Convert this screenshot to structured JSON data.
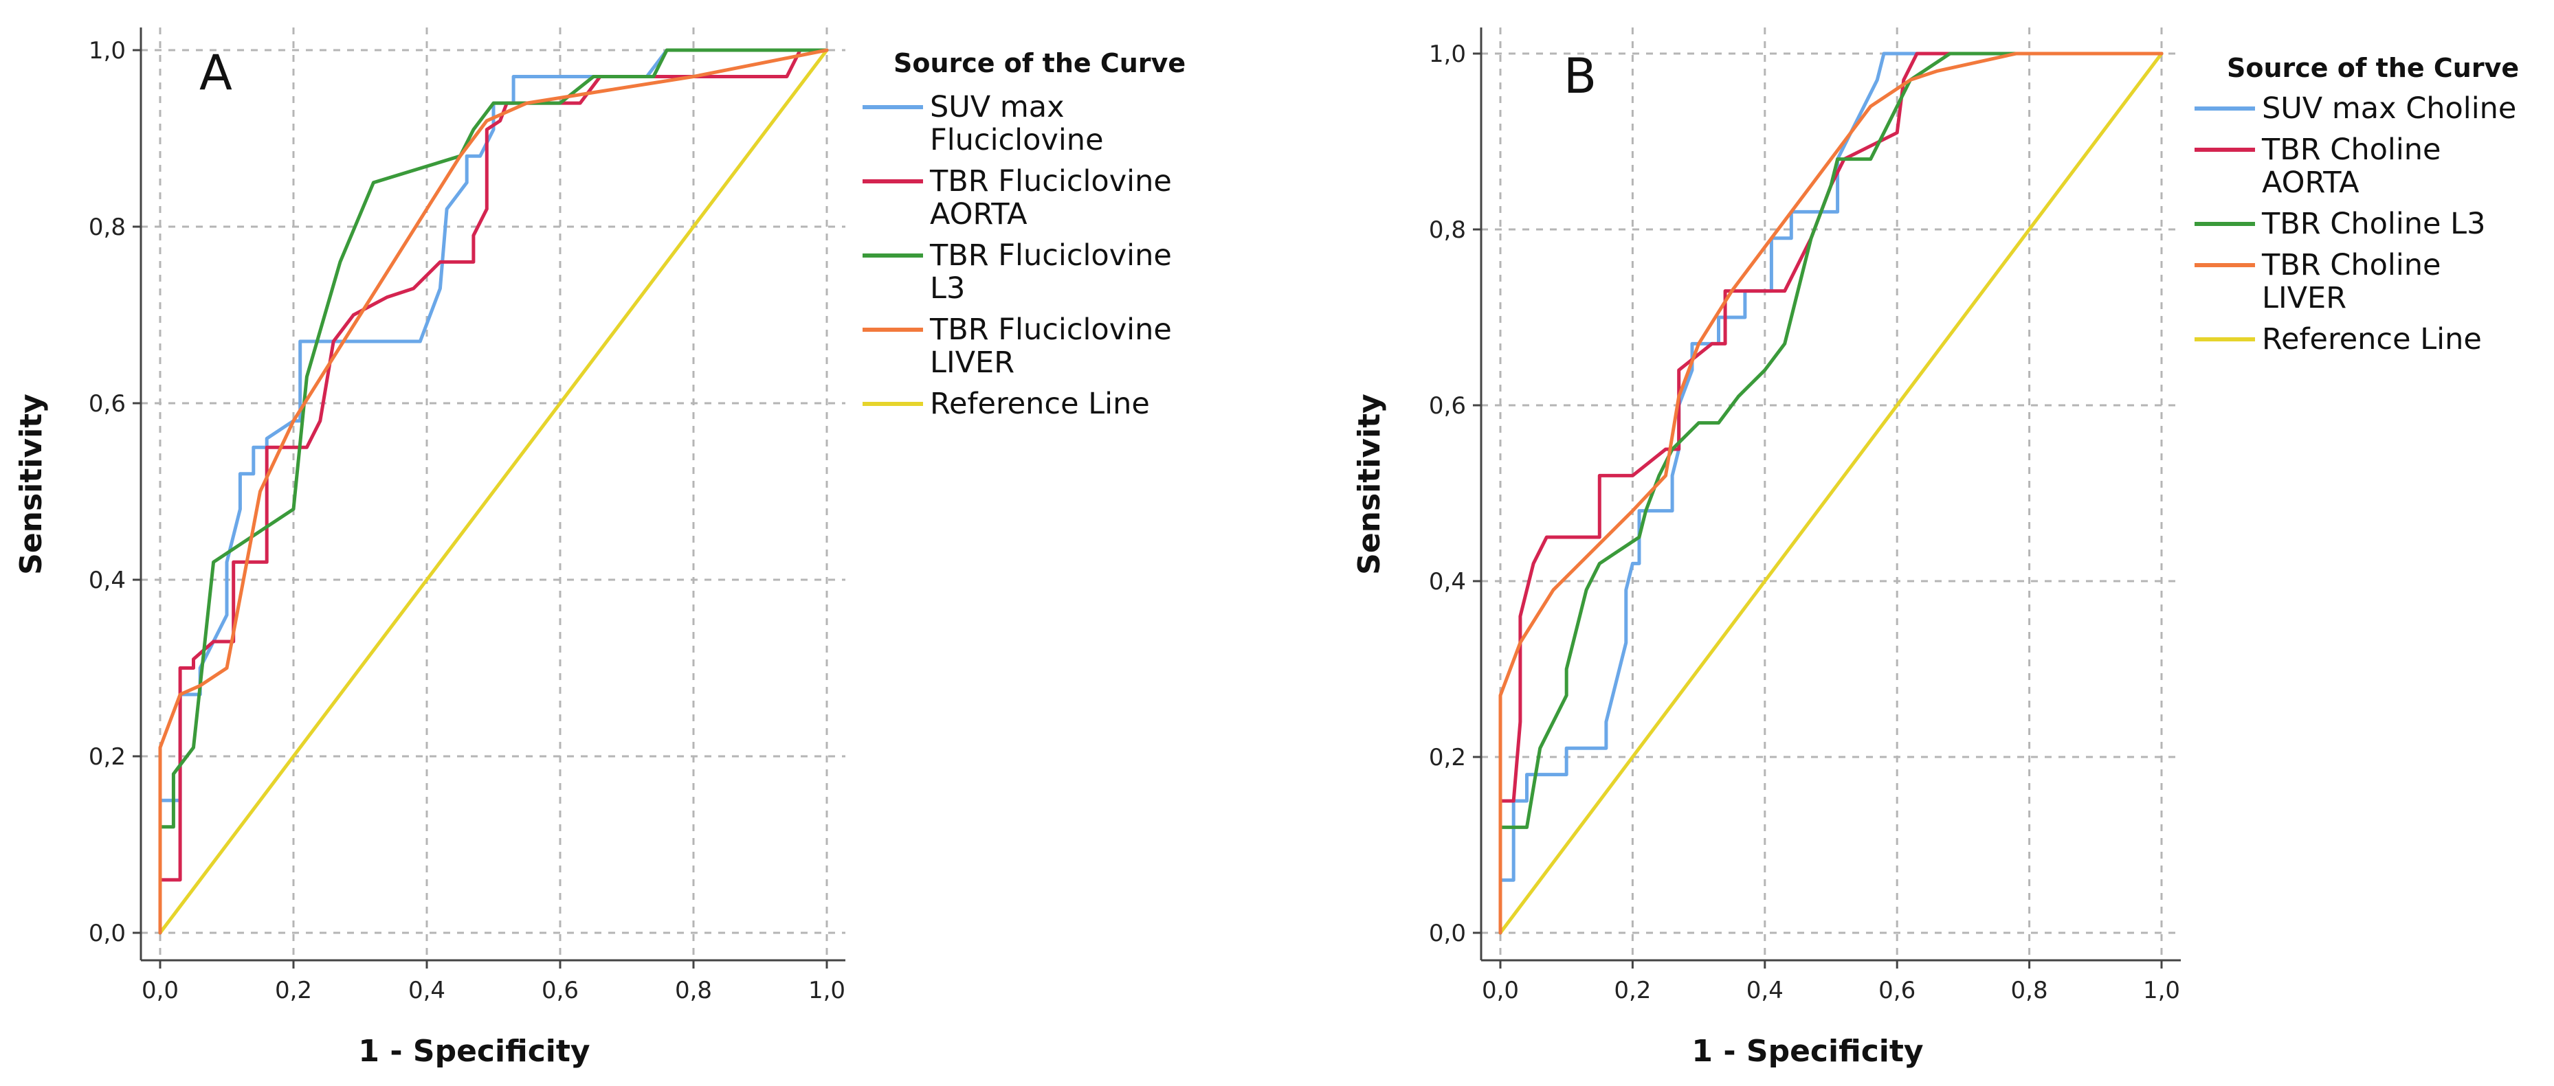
{
  "chart_data": [
    {
      "type": "line",
      "panel_label": "A",
      "title": "",
      "xlabel": "1 - Specificity",
      "ylabel": "Sensitivity",
      "xlim": [
        0,
        1
      ],
      "ylim": [
        0,
        1
      ],
      "xticks": [
        "0,0",
        "0,2",
        "0,4",
        "0,6",
        "0,8",
        "1,0"
      ],
      "yticks": [
        "0,0",
        "0,2",
        "0,4",
        "0,6",
        "0,8",
        "1,0"
      ],
      "grid": true,
      "legend_title": "Source of the Curve",
      "legend_position": "right",
      "series": [
        {
          "name": "SUV max Fluciclovine",
          "legend_lines": [
            "SUV max",
            "Fluciclovine"
          ],
          "color": "#6aa7e8",
          "x": [
            0,
            0,
            0.03,
            0.03,
            0.06,
            0.06,
            0.1,
            0.1,
            0.12,
            0.12,
            0.14,
            0.14,
            0.16,
            0.16,
            0.2,
            0.21,
            0.21,
            0.39,
            0.42,
            0.43,
            0.46,
            0.46,
            0.48,
            0.5,
            0.5,
            0.53,
            0.53,
            0.62,
            0.64,
            0.73,
            0.76,
            1
          ],
          "y": [
            0,
            0.15,
            0.15,
            0.27,
            0.27,
            0.3,
            0.36,
            0.42,
            0.48,
            0.52,
            0.52,
            0.55,
            0.55,
            0.56,
            0.58,
            0.58,
            0.67,
            0.67,
            0.73,
            0.82,
            0.85,
            0.88,
            0.88,
            0.91,
            0.94,
            0.94,
            0.97,
            0.97,
            0.97,
            0.97,
            1,
            1
          ]
        },
        {
          "name": "TBR Fluciclovine AORTA",
          "legend_lines": [
            "TBR Fluciclovine",
            "AORTA"
          ],
          "color": "#d42450",
          "x": [
            0,
            0,
            0.03,
            0.03,
            0.05,
            0.05,
            0.08,
            0.11,
            0.11,
            0.12,
            0.13,
            0.16,
            0.16,
            0.22,
            0.24,
            0.26,
            0.29,
            0.34,
            0.38,
            0.42,
            0.47,
            0.47,
            0.49,
            0.49,
            0.51,
            0.52,
            0.6,
            0.63,
            0.66,
            0.94,
            0.96,
            1
          ],
          "y": [
            0,
            0.06,
            0.06,
            0.3,
            0.3,
            0.31,
            0.33,
            0.33,
            0.42,
            0.42,
            0.42,
            0.42,
            0.55,
            0.55,
            0.58,
            0.67,
            0.7,
            0.72,
            0.73,
            0.76,
            0.76,
            0.79,
            0.82,
            0.91,
            0.92,
            0.94,
            0.94,
            0.94,
            0.97,
            0.97,
            1,
            1
          ]
        },
        {
          "name": "TBR Fluciclovine L3",
          "legend_lines": [
            "TBR Fluciclovine",
            "L3"
          ],
          "color": "#3a9a3a",
          "x": [
            0,
            0,
            0.02,
            0.02,
            0.05,
            0.08,
            0.2,
            0.22,
            0.27,
            0.32,
            0.45,
            0.47,
            0.5,
            0.52,
            0.55,
            0.6,
            0.65,
            0.74,
            0.76,
            1
          ],
          "y": [
            0,
            0.12,
            0.12,
            0.18,
            0.21,
            0.42,
            0.48,
            0.63,
            0.76,
            0.85,
            0.88,
            0.91,
            0.94,
            0.94,
            0.94,
            0.94,
            0.97,
            0.97,
            1,
            1
          ]
        },
        {
          "name": "TBR Fluciclovine LIVER",
          "legend_lines": [
            "TBR Fluciclovine",
            "LIVER"
          ],
          "color": "#f2793c",
          "x": [
            0,
            0,
            0.03,
            0.06,
            0.1,
            0.15,
            0.2,
            0.3,
            0.45,
            0.49,
            0.55,
            0.8,
            1
          ],
          "y": [
            0,
            0.21,
            0.27,
            0.28,
            0.3,
            0.5,
            0.58,
            0.7,
            0.88,
            0.92,
            0.94,
            0.97,
            1
          ]
        },
        {
          "name": "Reference Line",
          "legend_lines": [
            "Reference Line"
          ],
          "color": "#e6d42b",
          "x": [
            0,
            1
          ],
          "y": [
            0,
            1
          ]
        }
      ]
    },
    {
      "type": "line",
      "panel_label": "B",
      "title": "",
      "xlabel": "1 - Specificity",
      "ylabel": "Sensitivity",
      "xlim": [
        0,
        1
      ],
      "ylim": [
        0,
        1
      ],
      "xticks": [
        "0,0",
        "0,2",
        "0,4",
        "0,6",
        "0,8",
        "1,0"
      ],
      "yticks": [
        "0,0",
        "0,2",
        "0,4",
        "0,6",
        "0,8",
        "1,0"
      ],
      "grid": true,
      "legend_title": "Source of the Curve",
      "legend_position": "right",
      "series": [
        {
          "name": "SUV max Choline",
          "legend_lines": [
            "SUV max Choline"
          ],
          "color": "#6aa7e8",
          "x": [
            0,
            0,
            0.02,
            0.02,
            0.04,
            0.04,
            0.1,
            0.1,
            0.16,
            0.16,
            0.19,
            0.19,
            0.2,
            0.21,
            0.21,
            0.26,
            0.26,
            0.27,
            0.27,
            0.29,
            0.29,
            0.33,
            0.33,
            0.37,
            0.37,
            0.41,
            0.41,
            0.44,
            0.44,
            0.51,
            0.51,
            0.55,
            0.57,
            0.58,
            1
          ],
          "y": [
            0,
            0.06,
            0.06,
            0.15,
            0.15,
            0.18,
            0.18,
            0.21,
            0.21,
            0.24,
            0.33,
            0.39,
            0.42,
            0.42,
            0.48,
            0.48,
            0.52,
            0.55,
            0.6,
            0.64,
            0.67,
            0.67,
            0.7,
            0.7,
            0.73,
            0.73,
            0.79,
            0.79,
            0.82,
            0.82,
            0.88,
            0.94,
            0.97,
            1,
            1
          ]
        },
        {
          "name": "TBR Choline AORTA",
          "legend_lines": [
            "TBR Choline",
            "AORTA"
          ],
          "color": "#d42450",
          "x": [
            0,
            0,
            0.02,
            0.03,
            0.03,
            0.05,
            0.07,
            0.15,
            0.15,
            0.2,
            0.25,
            0.27,
            0.27,
            0.32,
            0.34,
            0.34,
            0.43,
            0.47,
            0.5,
            0.52,
            0.6,
            0.61,
            0.63,
            0.68,
            1
          ],
          "y": [
            0,
            0.15,
            0.15,
            0.24,
            0.36,
            0.42,
            0.45,
            0.45,
            0.52,
            0.52,
            0.55,
            0.55,
            0.64,
            0.67,
            0.67,
            0.73,
            0.73,
            0.79,
            0.85,
            0.88,
            0.91,
            0.97,
            1,
            1,
            1
          ]
        },
        {
          "name": "TBR Choline L3",
          "legend_lines": [
            "TBR Choline L3"
          ],
          "color": "#3a9a3a",
          "x": [
            0,
            0,
            0.04,
            0.06,
            0.1,
            0.1,
            0.13,
            0.15,
            0.17,
            0.21,
            0.22,
            0.24,
            0.26,
            0.3,
            0.33,
            0.36,
            0.4,
            0.43,
            0.47,
            0.5,
            0.51,
            0.54,
            0.56,
            0.58,
            0.62,
            0.68,
            0.78,
            1
          ],
          "y": [
            0,
            0.12,
            0.12,
            0.21,
            0.27,
            0.3,
            0.39,
            0.42,
            0.43,
            0.45,
            0.48,
            0.52,
            0.55,
            0.58,
            0.58,
            0.61,
            0.64,
            0.67,
            0.79,
            0.85,
            0.88,
            0.88,
            0.88,
            0.91,
            0.97,
            1,
            1,
            1
          ]
        },
        {
          "name": "TBR Choline LIVER",
          "legend_lines": [
            "TBR Choline",
            "LIVER"
          ],
          "color": "#f2793c",
          "x": [
            0,
            0,
            0.03,
            0.08,
            0.2,
            0.25,
            0.27,
            0.3,
            0.35,
            0.5,
            0.56,
            0.62,
            0.66,
            0.78,
            1
          ],
          "y": [
            0,
            0.27,
            0.33,
            0.39,
            0.48,
            0.52,
            0.61,
            0.67,
            0.73,
            0.88,
            0.94,
            0.97,
            0.98,
            1,
            1
          ]
        },
        {
          "name": "Reference Line",
          "legend_lines": [
            "Reference Line"
          ],
          "color": "#e6d42b",
          "x": [
            0,
            1
          ],
          "y": [
            0,
            1
          ]
        }
      ]
    }
  ]
}
